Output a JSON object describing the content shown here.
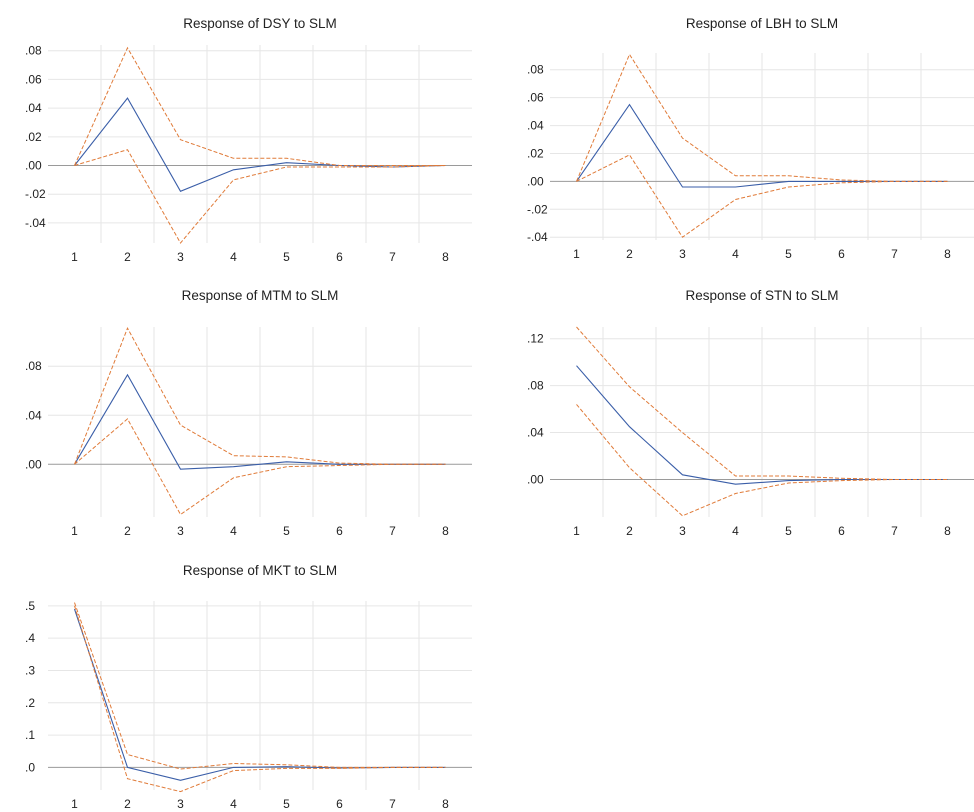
{
  "colors": {
    "response": "#3a5ea8",
    "band": "#e07b39",
    "zero_line": "#9a9a9a",
    "grid": "#e6e6e6"
  },
  "chart_data": [
    {
      "type": "line",
      "title": "Response of DSY to SLM",
      "x": [
        1,
        2,
        3,
        4,
        5,
        6,
        7,
        8
      ],
      "ylim": [
        -0.054,
        0.084
      ],
      "yticks": [
        0.08,
        0.06,
        0.04,
        0.02,
        0.0,
        -0.02,
        -0.04
      ],
      "ytick_labels": [
        ".08",
        ".06",
        ".04",
        ".02",
        ".00",
        "-.02",
        "-.04"
      ],
      "grid": true,
      "series": [
        {
          "role": "response",
          "values": [
            0.0,
            0.047,
            -0.018,
            -0.003,
            0.002,
            0.0,
            -0.001,
            0.0
          ]
        },
        {
          "role": "upper",
          "values": [
            0.0,
            0.082,
            0.018,
            0.005,
            0.005,
            0.0,
            0.0,
            0.0
          ]
        },
        {
          "role": "lower",
          "values": [
            0.0,
            0.011,
            -0.054,
            -0.01,
            -0.001,
            -0.001,
            -0.001,
            0.0
          ]
        }
      ]
    },
    {
      "type": "line",
      "title": "Response of LBH to SLM",
      "x": [
        1,
        2,
        3,
        4,
        5,
        6,
        7,
        8
      ],
      "ylim": [
        -0.042,
        0.092
      ],
      "yticks": [
        0.08,
        0.06,
        0.04,
        0.02,
        0.0,
        -0.02,
        -0.04
      ],
      "ytick_labels": [
        ".08",
        ".06",
        ".04",
        ".02",
        ".00",
        "-.02",
        "-.04"
      ],
      "grid": true,
      "series": [
        {
          "role": "response",
          "values": [
            0.0,
            0.055,
            -0.004,
            -0.004,
            0.0,
            0.0,
            0.0,
            0.0
          ]
        },
        {
          "role": "upper",
          "values": [
            0.0,
            0.091,
            0.031,
            0.004,
            0.004,
            0.001,
            0.0,
            0.0
          ]
        },
        {
          "role": "lower",
          "values": [
            0.0,
            0.019,
            -0.04,
            -0.013,
            -0.004,
            -0.001,
            0.0,
            0.0
          ]
        }
      ]
    },
    {
      "type": "line",
      "title": "Response of MTM to SLM",
      "x": [
        1,
        2,
        3,
        4,
        5,
        6,
        7,
        8
      ],
      "ylim": [
        -0.043,
        0.112
      ],
      "yticks": [
        0.08,
        0.04,
        0.0
      ],
      "ytick_labels": [
        ".08",
        ".04",
        ".00"
      ],
      "grid": true,
      "series": [
        {
          "role": "response",
          "values": [
            0.0,
            0.073,
            -0.004,
            -0.002,
            0.002,
            0.0,
            0.0,
            0.0
          ]
        },
        {
          "role": "upper",
          "values": [
            0.0,
            0.111,
            0.032,
            0.007,
            0.006,
            0.001,
            0.0,
            0.0
          ]
        },
        {
          "role": "lower",
          "values": [
            0.0,
            0.037,
            -0.041,
            -0.011,
            -0.002,
            -0.001,
            0.0,
            0.0
          ]
        }
      ]
    },
    {
      "type": "line",
      "title": "Response of STN to SLM",
      "x": [
        1,
        2,
        3,
        4,
        5,
        6,
        7,
        8
      ],
      "ylim": [
        -0.032,
        0.13
      ],
      "yticks": [
        0.12,
        0.08,
        0.04,
        0.0
      ],
      "ytick_labels": [
        ".12",
        ".08",
        ".04",
        ".00"
      ],
      "grid": true,
      "series": [
        {
          "role": "response",
          "values": [
            0.097,
            0.045,
            0.004,
            -0.004,
            -0.001,
            0.0,
            0.0,
            0.0
          ]
        },
        {
          "role": "upper",
          "values": [
            0.13,
            0.079,
            0.04,
            0.003,
            0.003,
            0.001,
            0.0,
            0.0
          ]
        },
        {
          "role": "lower",
          "values": [
            0.064,
            0.01,
            -0.031,
            -0.012,
            -0.003,
            -0.001,
            0.0,
            0.0
          ]
        }
      ]
    },
    {
      "type": "line",
      "title": "Response of MKT to SLM",
      "x": [
        1,
        2,
        3,
        4,
        5,
        6,
        7,
        8
      ],
      "ylim": [
        -0.07,
        0.515
      ],
      "yticks": [
        0.5,
        0.4,
        0.3,
        0.2,
        0.1,
        0.0
      ],
      "ytick_labels": [
        ".5",
        ".4",
        ".3",
        ".2",
        ".1",
        ".0"
      ],
      "grid": true,
      "series": [
        {
          "role": "response",
          "values": [
            0.49,
            0.0,
            -0.04,
            0.0,
            0.002,
            -0.002,
            0.0,
            0.0
          ]
        },
        {
          "role": "upper",
          "values": [
            0.51,
            0.04,
            -0.005,
            0.012,
            0.008,
            0.0,
            0.0,
            0.0
          ]
        },
        {
          "role": "lower",
          "values": [
            0.5,
            -0.035,
            -0.075,
            -0.01,
            -0.003,
            -0.003,
            0.0,
            0.0
          ]
        }
      ]
    }
  ]
}
